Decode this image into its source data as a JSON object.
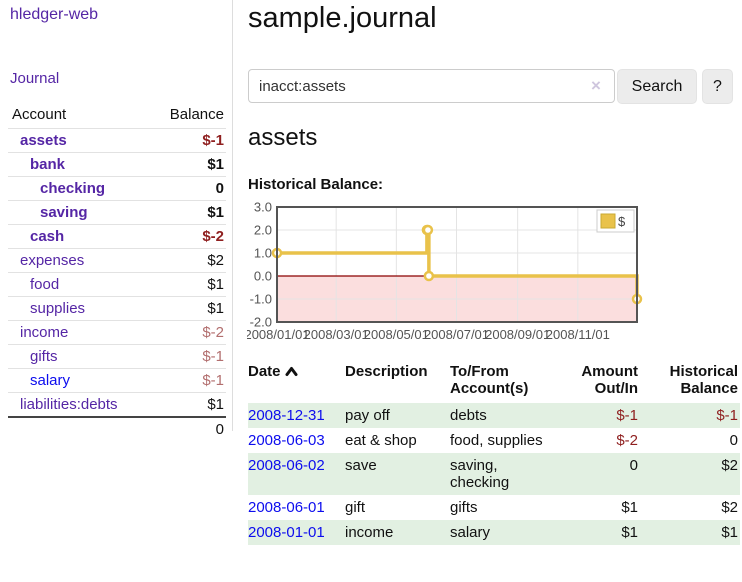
{
  "colors": {
    "purple_link": "#5526a5",
    "blue_link": "#0d0dee",
    "negative_bold": "#8f1f1f",
    "negative_light": "#b26e6e",
    "row_green": "#e2f0e2",
    "chart_gold": "#e9c24a",
    "chart_negative_fill": "#fbdede",
    "chart_zero_line": "#8b0000"
  },
  "sidebar": {
    "brand": "hledger-web",
    "journal_link": "Journal",
    "accounts_table": {
      "headers": {
        "account": "Account",
        "balance": "Balance"
      },
      "rows": [
        {
          "name": "assets",
          "balance": "$-1"
        },
        {
          "name": "bank",
          "balance": "$1"
        },
        {
          "name": "checking",
          "balance": "0"
        },
        {
          "name": "saving",
          "balance": "$1"
        },
        {
          "name": "cash",
          "balance": "$-2"
        },
        {
          "name": "expenses",
          "balance": "$2"
        },
        {
          "name": "food",
          "balance": "$1"
        },
        {
          "name": "supplies",
          "balance": "$1"
        },
        {
          "name": "income",
          "balance": "$-2"
        },
        {
          "name": "gifts",
          "balance": "$-1"
        },
        {
          "name": "salary",
          "balance": "$-1"
        },
        {
          "name": "liabilities:debts",
          "balance": "$1"
        }
      ],
      "total": "0"
    }
  },
  "header": {
    "title": "sample.journal"
  },
  "search": {
    "value": "inacct:assets",
    "clear_icon": "×",
    "search_button": "Search",
    "help_button": "?"
  },
  "main": {
    "account_heading": "assets",
    "chart_title": "Historical Balance:"
  },
  "chart_data": {
    "type": "line",
    "steps": true,
    "title": "Historical Balance:",
    "legend": "$",
    "legend_position": "top-right",
    "grid": true,
    "ylim": [
      -2,
      3
    ],
    "xlim_days": [
      0,
      365
    ],
    "y_ticks": [
      "3.0",
      "2.0",
      "1.0",
      "0.0",
      "-1.0",
      "-2.0"
    ],
    "y_tick_values": [
      3,
      2,
      1,
      0,
      -1,
      -2
    ],
    "x_ticks": [
      "2008/01/01",
      "2008/03/01",
      "2008/05/01",
      "2008/07/01",
      "2008/09/01",
      "2008/11/01"
    ],
    "series": [
      {
        "name": "$",
        "points": [
          {
            "date": "2008-01-01",
            "value": 1
          },
          {
            "date": "2008-06-01",
            "value": 2
          },
          {
            "date": "2008-06-02",
            "value": 2
          },
          {
            "date": "2008-06-03",
            "value": 0
          },
          {
            "date": "2008-12-31",
            "value": -1
          }
        ]
      }
    ]
  },
  "register": {
    "headers": {
      "date": "Date",
      "description": "Description",
      "accounts": "To/From Account(s)",
      "amount": "Amount Out/In",
      "balance": "Historical Balance"
    },
    "rows": [
      {
        "date": "2008-12-31",
        "description": "pay off",
        "accounts": "debts",
        "amount": "$-1",
        "balance": "$-1"
      },
      {
        "date": "2008-06-03",
        "description": "eat & shop",
        "accounts": "food, supplies",
        "amount": "$-2",
        "balance": "0"
      },
      {
        "date": "2008-06-02",
        "description": "save",
        "accounts": "saving, checking",
        "amount": "0",
        "balance": "$2"
      },
      {
        "date": "2008-06-01",
        "description": "gift",
        "accounts": "gifts",
        "amount": "$1",
        "balance": "$2"
      },
      {
        "date": "2008-01-01",
        "description": "income",
        "accounts": "salary",
        "amount": "$1",
        "balance": "$1"
      }
    ]
  }
}
